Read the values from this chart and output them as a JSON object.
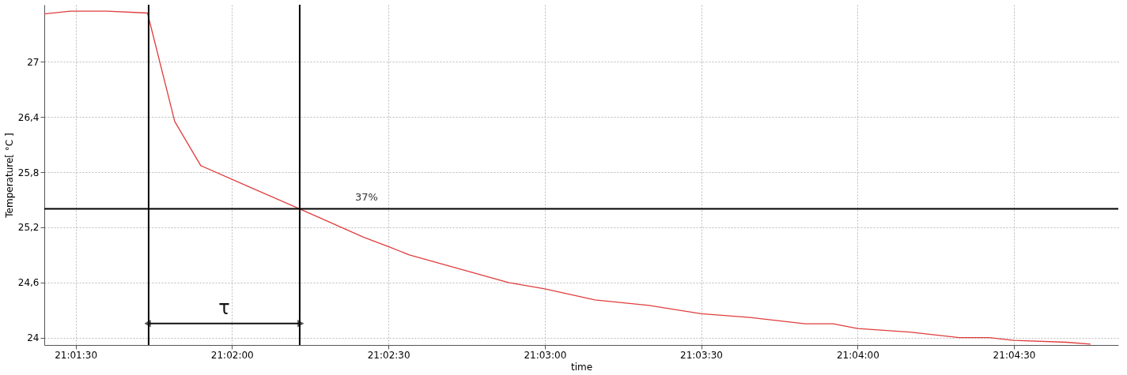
{
  "chart_data": {
    "type": "line",
    "xlabel": "time",
    "ylabel": "Temperature[ °C ]",
    "x": [
      21.02333,
      21.02472,
      21.02667,
      21.02883,
      21.03028,
      21.03167,
      21.03436,
      21.03694,
      21.04036,
      21.04167,
      21.04278,
      21.04806,
      21.05,
      21.05267,
      21.05556,
      21.05833,
      21.06094,
      21.06389,
      21.06536,
      21.06667,
      21.06944,
      21.07208,
      21.07369,
      21.075,
      21.07778,
      21.07908
    ],
    "series": [
      {
        "color": "#e03c3c",
        "values": [
          27.52,
          27.55,
          27.55,
          27.53,
          26.35,
          25.87,
          25.63,
          25.4,
          25.09,
          24.99,
          24.9,
          24.6,
          24.53,
          24.41,
          24.35,
          24.26,
          24.22,
          24.15,
          24.15,
          24.1,
          24.06,
          24.0,
          24.0,
          23.97,
          23.95,
          23.93
        ]
      }
    ],
    "xlim": [
      21.02333,
      21.08056
    ],
    "xticks": [
      {
        "value": 21.025,
        "label": "21:01:30"
      },
      {
        "value": 21.03333,
        "label": "21:02:00"
      },
      {
        "value": 21.04167,
        "label": "21:02:30"
      },
      {
        "value": 21.05,
        "label": "21:03:00"
      },
      {
        "value": 21.05833,
        "label": "21:03:30"
      },
      {
        "value": 21.06667,
        "label": "21:04:00"
      },
      {
        "value": 21.075,
        "label": "21:04:30"
      }
    ],
    "ylim": [
      23.92,
      27.62
    ],
    "yticks": [
      24,
      {
        "value": 24.6,
        "label": "24,6"
      },
      {
        "value": 25.2,
        "label": "25,2"
      },
      {
        "value": 25.8,
        "label": "25,8"
      },
      {
        "value": 26.4,
        "label": "26,4"
      },
      27
    ],
    "ref_lines": [
      {
        "axis": "x",
        "value": 21.02889,
        "color": "#000000"
      },
      {
        "axis": "x",
        "value": 21.03694,
        "color": "#000000"
      },
      {
        "axis": "y",
        "value": 25.4,
        "color": "#000000"
      }
    ],
    "annotations": [
      "37%",
      "τ"
    ],
    "grid": true,
    "marker": "none",
    "line_style": "solid"
  }
}
